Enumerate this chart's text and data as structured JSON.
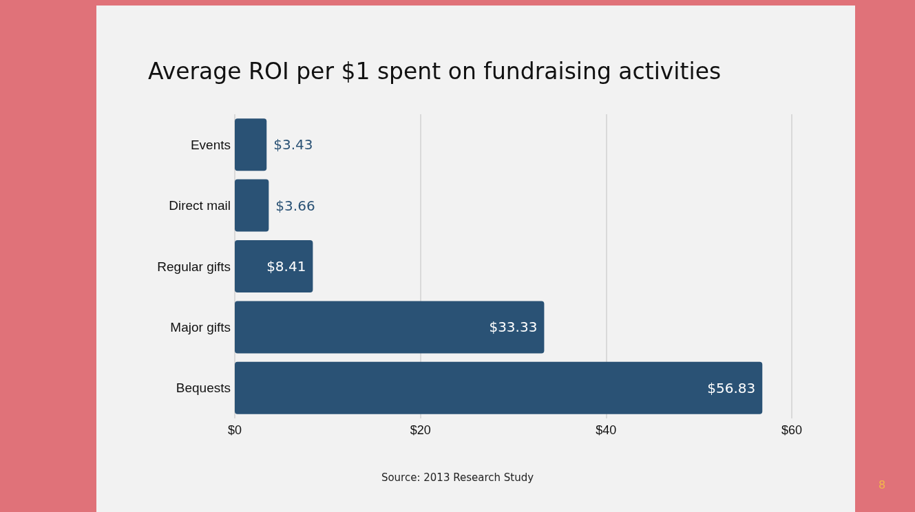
{
  "chart_data": {
    "type": "bar",
    "orientation": "horizontal",
    "title": "Average ROI per $1 spent on fundraising activities",
    "categories": [
      "Events",
      "Direct mail",
      "Regular gifts",
      "Major gifts",
      "Bequests"
    ],
    "values": [
      3.43,
      3.66,
      8.41,
      33.33,
      56.83
    ],
    "color": "#2a5275",
    "value_labels": [
      "$3.43",
      "$3.66",
      "$8.41",
      "$33.33",
      "$56.83"
    ],
    "xlim": [
      0,
      60
    ],
    "xticks": [
      {
        "value": 0,
        "label": "$0"
      },
      {
        "value": 20,
        "label": "$20"
      },
      {
        "value": 40,
        "label": "$40"
      },
      {
        "value": 60,
        "label": "$60"
      }
    ],
    "grid": "x",
    "annotations": [
      "Source: 2013 Research Study",
      "8"
    ]
  }
}
